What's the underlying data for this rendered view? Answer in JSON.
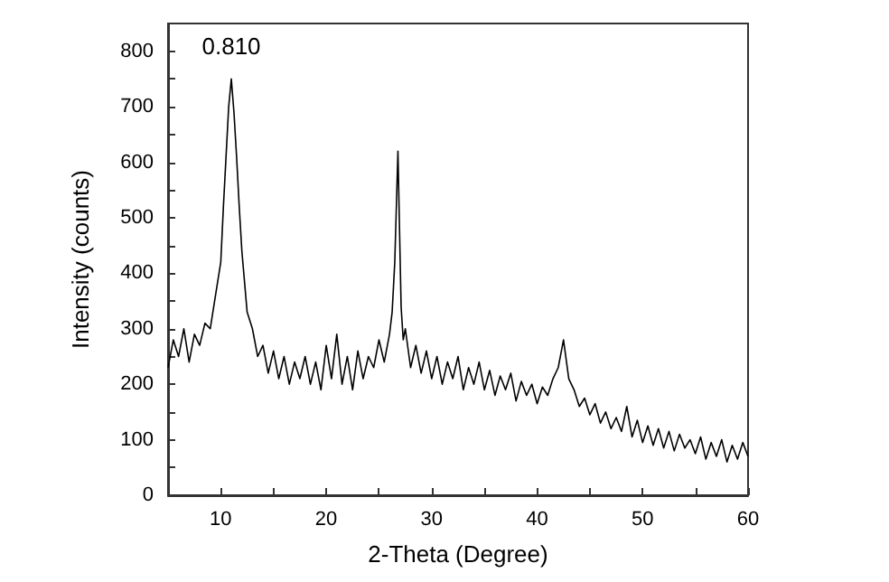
{
  "chart_data": {
    "type": "line",
    "xlabel": "2-Theta (Degree)",
    "ylabel": "Intensity (counts)",
    "annotations": [
      {
        "text": "0.810",
        "x": 11,
        "y": 750
      }
    ],
    "xlim": [
      5,
      60
    ],
    "xticks": [
      {
        "value": 5,
        "label": null
      },
      10,
      {
        "value": 15,
        "label": null
      },
      20,
      {
        "value": 25,
        "label": null
      },
      30,
      {
        "value": 35,
        "label": null
      },
      40,
      {
        "value": 45,
        "label": null
      },
      50,
      {
        "value": 55,
        "label": null
      },
      60
    ],
    "ylim": [
      0,
      850
    ],
    "yticks": [
      0,
      {
        "value": 50,
        "label": null
      },
      100,
      {
        "value": 150,
        "label": null
      },
      200,
      {
        "value": 250,
        "label": null
      },
      300,
      {
        "value": 350,
        "label": null
      },
      400,
      {
        "value": 450,
        "label": null
      },
      500,
      {
        "value": 550,
        "label": null
      },
      600,
      {
        "value": 650,
        "label": null
      },
      700,
      {
        "value": 750,
        "label": null
      },
      800
    ],
    "grid": false,
    "marker": "none",
    "line_style": "solid",
    "series": [
      {
        "color": "#000000",
        "x": [
          5,
          5.5,
          6,
          6.5,
          7,
          7.5,
          8,
          8.5,
          9,
          9.5,
          10,
          10.25,
          10.5,
          10.75,
          11,
          11.25,
          11.5,
          11.75,
          12,
          12.5,
          13,
          13.5,
          14,
          14.5,
          15,
          15.5,
          16,
          16.5,
          17,
          17.5,
          18,
          18.5,
          19,
          19.5,
          20,
          20.5,
          21,
          21.5,
          22,
          22.5,
          23,
          23.5,
          24,
          24.5,
          25,
          25.5,
          26,
          26.25,
          26.5,
          26.65,
          26.8,
          26.95,
          27.1,
          27.3,
          27.5,
          28,
          28.5,
          29,
          29.5,
          30,
          30.5,
          31,
          31.5,
          32,
          32.5,
          33,
          33.5,
          34,
          34.5,
          35,
          35.5,
          36,
          36.5,
          37,
          37.5,
          38,
          38.5,
          39,
          39.5,
          40,
          40.5,
          41,
          41.5,
          42,
          42.25,
          42.5,
          42.75,
          43,
          43.5,
          44,
          44.5,
          45,
          45.5,
          46,
          46.5,
          47,
          47.5,
          48,
          48.5,
          49,
          49.5,
          50,
          50.5,
          51,
          51.5,
          52,
          52.5,
          53,
          53.5,
          54,
          54.5,
          55,
          55.5,
          56,
          56.5,
          57,
          57.5,
          58,
          58.5,
          59,
          59.5,
          60
        ],
        "values": [
          230,
          280,
          250,
          300,
          240,
          290,
          270,
          310,
          300,
          360,
          420,
          520,
          610,
          700,
          750,
          690,
          610,
          520,
          440,
          330,
          300,
          250,
          270,
          220,
          260,
          210,
          250,
          200,
          240,
          210,
          250,
          200,
          240,
          190,
          270,
          210,
          290,
          200,
          250,
          190,
          260,
          210,
          250,
          230,
          280,
          240,
          290,
          330,
          420,
          520,
          620,
          480,
          340,
          280,
          300,
          230,
          270,
          220,
          260,
          210,
          250,
          200,
          240,
          210,
          250,
          190,
          230,
          200,
          240,
          190,
          225,
          180,
          215,
          190,
          220,
          170,
          205,
          180,
          200,
          165,
          195,
          180,
          210,
          230,
          255,
          280,
          245,
          210,
          190,
          160,
          175,
          145,
          165,
          130,
          150,
          120,
          140,
          115,
          160,
          105,
          135,
          95,
          125,
          90,
          120,
          85,
          115,
          80,
          110,
          85,
          100,
          75,
          105,
          65,
          95,
          70,
          100,
          60,
          90,
          65,
          95,
          70
        ]
      }
    ]
  }
}
